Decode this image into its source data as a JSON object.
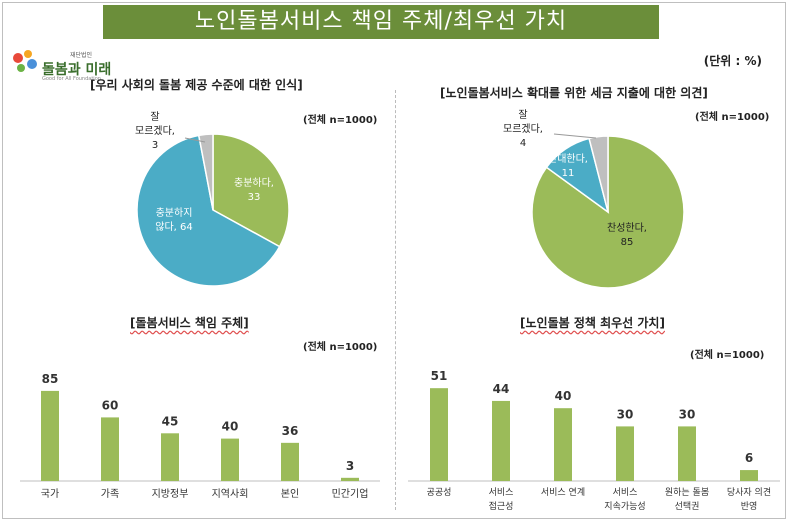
{
  "banner_title": "노인돌봄서비스 책임 주체/최우선 가치",
  "logo": {
    "name": "돌봄과 미래",
    "small": "재단법인",
    "tagline": "Good for All Foundation"
  },
  "unit_label": "(단위 : %)",
  "colors": {
    "banner": "#6b8e3a",
    "green": "#9bbb59",
    "blue": "#4bacc6",
    "gray": "#bfbfbf"
  },
  "chart_data": [
    {
      "type": "pie",
      "title": "[우리 사회의 돌봄 제공 수준에 대한 인식]",
      "note": "(전체 n=1000)",
      "slices": [
        {
          "label": "충분하다,",
          "value": 33,
          "color": "#9bbb59"
        },
        {
          "label": "충분하지 않다,",
          "value": 64,
          "color": "#4bacc6"
        },
        {
          "label": "잘 모르겠다,",
          "value": 3,
          "color": "#bfbfbf"
        }
      ]
    },
    {
      "type": "pie",
      "title": "[노인돌봄서비스 확대를 위한 세금 지출에 대한 의견]",
      "note": "(전체 n=1000)",
      "slices": [
        {
          "label": "찬성한다,",
          "value": 85,
          "color": "#9bbb59"
        },
        {
          "label": "반대한다,",
          "value": 11,
          "color": "#4bacc6"
        },
        {
          "label": "잘 모르겠다,",
          "value": 4,
          "color": "#bfbfbf"
        }
      ]
    },
    {
      "type": "bar",
      "title": "[돌봄서비스 책임 주체]",
      "note": "(전체 n=1000)",
      "categories": [
        "국가",
        "가족",
        "지방정부",
        "지역사회",
        "본인",
        "민간기업"
      ],
      "values": [
        85,
        60,
        45,
        40,
        36,
        3
      ],
      "color": "#9bbb59"
    },
    {
      "type": "bar",
      "title": "[노인돌봄 정책 최우선 가치]",
      "note": "(전체 n=1000)",
      "categories": [
        "공공성",
        "서비스 접근성",
        "서비스 연계",
        "서비스 지속가능성",
        "원하는 돌봄 선택권",
        "당사자 의견 반영"
      ],
      "values": [
        51,
        44,
        40,
        30,
        30,
        6
      ],
      "color": "#9bbb59"
    }
  ]
}
